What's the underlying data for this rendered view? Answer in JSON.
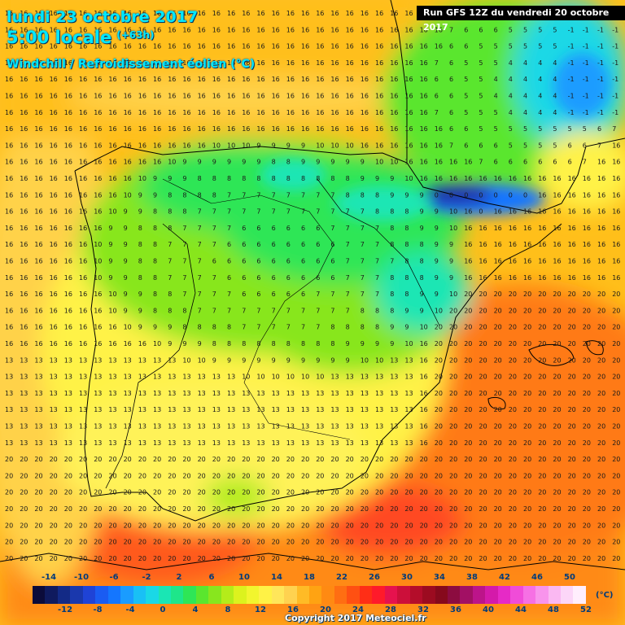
{
  "header": {
    "date": "lundi 23 octobre 2017",
    "time": "5:00 locale",
    "offset": "(+63h)",
    "parameter": "Windchill / Refroidissement éolien (°C)",
    "run": "Run GFS 12Z du vendredi 20 octobre 2017"
  },
  "legend": {
    "unit": "(°C)",
    "top_labels": [
      "-14",
      "-10",
      "-6",
      "-2",
      "2",
      "6",
      "10",
      "14",
      "18",
      "22",
      "26",
      "30",
      "34",
      "38",
      "42",
      "46",
      "50"
    ],
    "bottom_labels": [
      "-12",
      "-8",
      "-4",
      "0",
      "4",
      "8",
      "12",
      "16",
      "20",
      "24",
      "28",
      "32",
      "36",
      "40",
      "44",
      "48",
      "52"
    ],
    "colors": [
      "#0b0b3a",
      "#0f1a5e",
      "#132a86",
      "#1a38ad",
      "#1f43d6",
      "#1a5cf2",
      "#1476ff",
      "#1a9cff",
      "#19c0f5",
      "#1ad8e6",
      "#1ae6b4",
      "#1ee68a",
      "#2ee656",
      "#5ae62e",
      "#88e61e",
      "#b4ec1a",
      "#dcf21e",
      "#f2f52e",
      "#fff246",
      "#ffe65a",
      "#ffd250",
      "#ffbb26",
      "#ffa312",
      "#ff8a12",
      "#ff6e12",
      "#ff5012",
      "#ff2e16",
      "#ff1a2a",
      "#e6124e",
      "#cc0f3a",
      "#b40d2a",
      "#9c0b20",
      "#86091c",
      "#8c0c40",
      "#a21064",
      "#bc148a",
      "#d41aaa",
      "#e62ac6",
      "#f04cd8",
      "#f670e4",
      "#f894ec",
      "#fab8f2",
      "#fcd6f8",
      "#ffeefd"
    ]
  },
  "map": {
    "regions": [
      {
        "name": "iberia-cold-core",
        "range_c": [
          1,
          9
        ]
      },
      {
        "name": "cantabrian-mountains-minimum",
        "range_c": [
          -1,
          4
        ]
      },
      {
        "name": "pyrenees-minimum",
        "range_c": [
          -2,
          0
        ]
      },
      {
        "name": "mediterranean-warm",
        "range_c": [
          19,
          22
        ]
      },
      {
        "name": "atlantic-mild",
        "range_c": [
          14,
          18
        ]
      }
    ]
  },
  "copyright": "Copyright 2017 Meteociel.fr"
}
